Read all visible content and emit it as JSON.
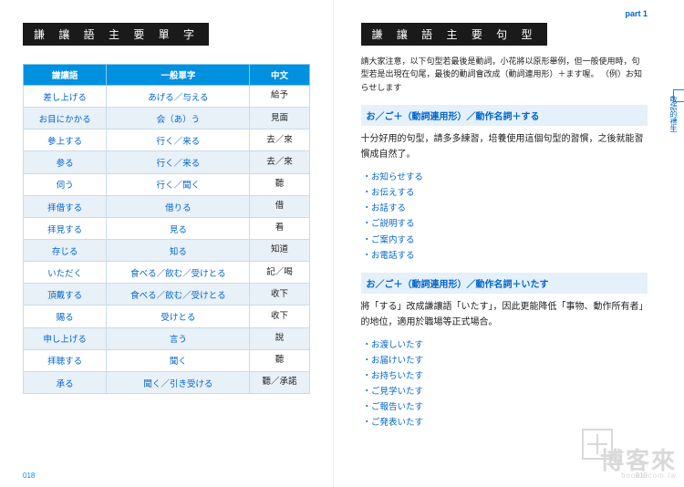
{
  "left": {
    "heading": "謙 讓 語 主 要 單 字",
    "page_num": "018",
    "table": {
      "headers": [
        "謙讓語",
        "一般單字",
        "中文"
      ],
      "rows": [
        [
          "差し上げる",
          "あげる／与える",
          "給予"
        ],
        [
          "お目にかかる",
          "会（あ）う",
          "見面"
        ],
        [
          "參上する",
          "行く／来る",
          "去／來"
        ],
        [
          "参る",
          "行く／来る",
          "去／來"
        ],
        [
          "伺う",
          "行く／聞く",
          "聽"
        ],
        [
          "拝借する",
          "借りる",
          "借"
        ],
        [
          "拝見する",
          "見る",
          "看"
        ],
        [
          "存じる",
          "知る",
          "知道"
        ],
        [
          "いただく",
          "食べる／飲む／受けとる",
          "記／喝"
        ],
        [
          "頂戴する",
          "食べる／飲む／受けとる",
          "收下"
        ],
        [
          "賜る",
          "受けとる",
          "收下"
        ],
        [
          "申し上げる",
          "言う",
          "說"
        ],
        [
          "拝聴する",
          "聞く",
          "聽"
        ],
        [
          "承る",
          "聞く／引き受ける",
          "聽／承諾"
        ]
      ]
    }
  },
  "right": {
    "part": "part 1",
    "heading": "謙 讓 語 主 要 句 型",
    "intro": "請大家注意，以下句型若最後是動詞，小花將以原形舉例，但一般使用時，句型若是出現在句尾，最後的動詞會改成（動詞連用形）＋ます喔。\n（例）お知らせします",
    "side_tab": "敬語的禮生",
    "page_num": "019",
    "sections": [
      {
        "pattern": "お／ご＋（動詞連用形）／動作名詞＋する",
        "body": "十分好用的句型，請多多練習，培養使用這個句型的習慣，之後就能習慣成自然了。",
        "examples": [
          "お知らせする",
          "お伝えする",
          "お話する",
          "ご説明する",
          "ご案内する",
          "お電話する"
        ]
      },
      {
        "pattern": "お／ご＋（動詞連用形）／動作名詞＋いたす",
        "body": "將「する」改成謙讓語「いたす」，因此更能降低「事物、動作所有者」的地位，適用於職場等正式場合。",
        "examples": [
          "お渡しいたす",
          "お届けいたす",
          "お持ちいたす",
          "ご見学いたす",
          "ご報告いたす",
          "ご発表いたす"
        ]
      }
    ]
  },
  "watermark": {
    "text": "博客來",
    "url": "books.com.tw"
  }
}
